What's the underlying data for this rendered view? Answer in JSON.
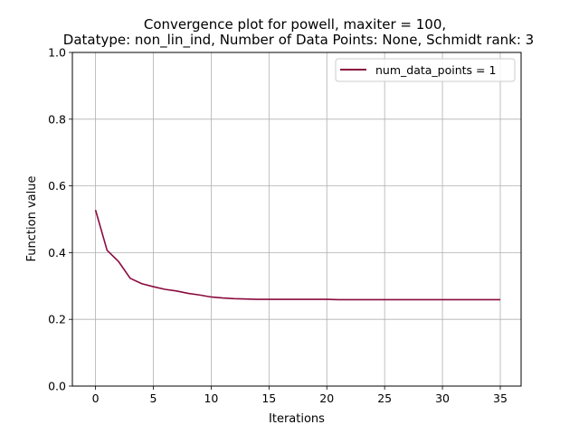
{
  "chart_data": {
    "type": "line",
    "title_lines": [
      "Convergence plot for powell, maxiter = 100,",
      "Datatype: non_lin_ind, Number of Data Points: None, Schmidt rank: 3"
    ],
    "xlabel": "Iterations",
    "ylabel": "Function value",
    "xlim": [
      -2,
      36.8
    ],
    "ylim": [
      0,
      1
    ],
    "xticks": [
      0,
      5,
      10,
      15,
      20,
      25,
      30,
      35
    ],
    "yticks": [
      0.0,
      0.2,
      0.4,
      0.6,
      0.8,
      1.0
    ],
    "xtick_labels": [
      "0",
      "5",
      "10",
      "15",
      "20",
      "25",
      "30",
      "35"
    ],
    "ytick_labels": [
      "0.0",
      "0.2",
      "0.4",
      "0.6",
      "0.8",
      "1.0"
    ],
    "grid": true,
    "legend_position": "top-right",
    "series": [
      {
        "name": "num_data_points = 1",
        "color": "#8b0a3f",
        "x": [
          0,
          1,
          2,
          3,
          4,
          5,
          6,
          7,
          8,
          9,
          10,
          11,
          12,
          13,
          14,
          15,
          16,
          17,
          18,
          19,
          20,
          21,
          22,
          23,
          24,
          25,
          26,
          27,
          28,
          29,
          30,
          31,
          32,
          33,
          34,
          35
        ],
        "y": [
          0.528,
          0.407,
          0.373,
          0.323,
          0.307,
          0.298,
          0.29,
          0.285,
          0.278,
          0.273,
          0.267,
          0.264,
          0.262,
          0.261,
          0.26,
          0.26,
          0.26,
          0.26,
          0.26,
          0.26,
          0.26,
          0.259,
          0.259,
          0.259,
          0.259,
          0.259,
          0.259,
          0.259,
          0.259,
          0.259,
          0.259,
          0.259,
          0.259,
          0.259,
          0.259,
          0.259
        ]
      }
    ]
  }
}
